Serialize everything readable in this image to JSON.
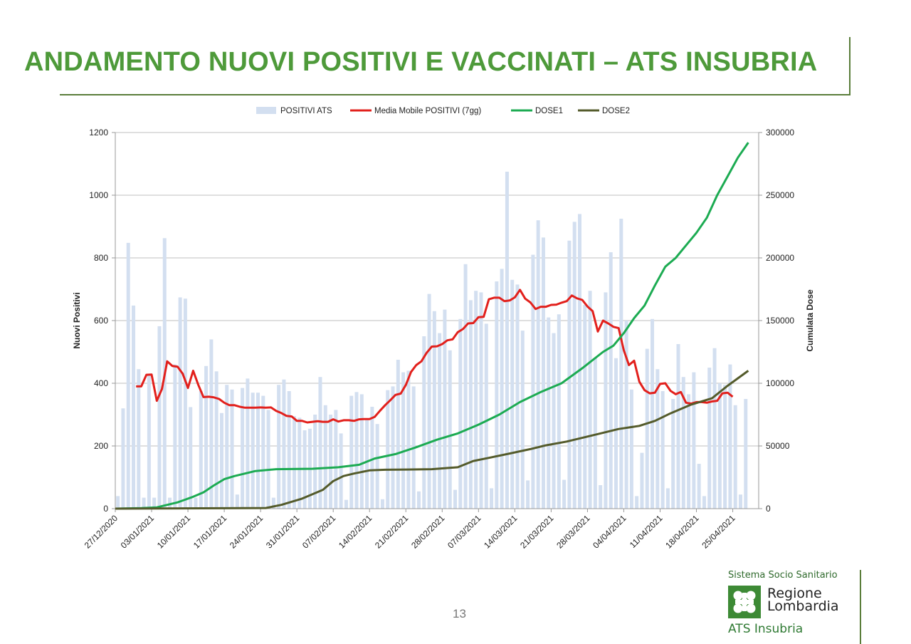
{
  "page": {
    "title": "ANDAMENTO NUOVI POSITIVI E VACCINATI – ATS INSUBRIA",
    "page_number": "13"
  },
  "branding": {
    "system": "Sistema Socio Sanitario",
    "region_line1": "Regione",
    "region_line2": "Lombardia",
    "ats": "ATS Insubria",
    "logo_icon": "regione-lombardia-logo-icon"
  },
  "chart_data": {
    "type": "bar+line",
    "title": "",
    "ylabel": "Nuovi Positivi",
    "y2label": "Cumulata Dose",
    "ylim": [
      0,
      1200
    ],
    "y2lim": [
      0,
      300000
    ],
    "yticks": [
      "0",
      "200",
      "400",
      "600",
      "800",
      "1000",
      "1200"
    ],
    "y2ticks": [
      "0",
      "50000",
      "100000",
      "150000",
      "200000",
      "250000",
      "300000"
    ],
    "xlim": [
      "2020-12-27",
      "2021-04-30"
    ],
    "xticks": [
      "27/12/2020",
      "03/01/2021",
      "10/01/2021",
      "17/01/2021",
      "24/01/2021",
      "31/01/2021",
      "07/02/2021",
      "14/02/2021",
      "21/02/2021",
      "28/02/2021",
      "07/03/2021",
      "14/03/2021",
      "21/03/2021",
      "28/03/2021",
      "04/04/2021",
      "11/04/2021",
      "18/04/2021",
      "25/04/2021"
    ],
    "grid": true,
    "legend_position": "top",
    "colors": {
      "bars": "#d3dff0",
      "moving_average": "#e2201c",
      "dose1": "#1cab52",
      "dose2": "#545b2b",
      "grid": "#bfbfbf",
      "text": "#222222"
    },
    "series": [
      {
        "name": "POSITIVI ATS",
        "type": "bar",
        "x_start": "2020-12-27",
        "values": [
          40,
          320,
          848,
          648,
          445,
          35,
          430,
          35,
          582,
          863,
          35,
          460,
          674,
          670,
          324,
          35,
          375,
          455,
          540,
          438,
          305,
          395,
          380,
          45,
          385,
          415,
          370,
          370,
          360,
          315,
          35,
          395,
          412,
          375,
          295,
          290,
          250,
          255,
          300,
          420,
          330,
          300,
          315,
          240,
          28,
          360,
          372,
          365,
          285,
          325,
          270,
          30,
          378,
          390,
          475,
          435,
          440,
          390,
          55,
          550,
          685,
          630,
          560,
          635,
          505,
          60,
          605,
          780,
          665,
          695,
          690,
          590,
          65,
          725,
          765,
          1075,
          730,
          715,
          568,
          90,
          810,
          920,
          865,
          610,
          560,
          620,
          92,
          855,
          915,
          940,
          650,
          695,
          480,
          75,
          690,
          818,
          480,
          925,
          600,
          380,
          40,
          178,
          510,
          605,
          445,
          375,
          65,
          350,
          525,
          420,
          365,
          435,
          143,
          40,
          450,
          512,
          400,
          395,
          460,
          330,
          45,
          350
        ]
      },
      {
        "name": "Media Mobile POSITIVI (7gg)",
        "type": "line",
        "axis": "left",
        "points": [
          [
            "2020-12-31",
            390
          ],
          [
            "2021-01-01",
            390
          ],
          [
            "2021-01-02",
            427
          ],
          [
            "2021-01-03",
            428
          ],
          [
            "2021-01-04",
            344
          ],
          [
            "2021-01-05",
            382
          ],
          [
            "2021-01-06",
            470
          ],
          [
            "2021-01-07",
            455
          ],
          [
            "2021-01-08",
            453
          ],
          [
            "2021-01-09",
            430
          ],
          [
            "2021-01-10",
            385
          ],
          [
            "2021-01-11",
            440
          ],
          [
            "2021-01-12",
            395
          ],
          [
            "2021-01-13",
            356
          ],
          [
            "2021-01-14",
            357
          ],
          [
            "2021-01-15",
            355
          ],
          [
            "2021-01-16",
            350
          ],
          [
            "2021-01-17",
            338
          ],
          [
            "2021-01-18",
            330
          ],
          [
            "2021-01-19",
            330
          ],
          [
            "2021-01-20",
            325
          ],
          [
            "2021-01-21",
            322
          ],
          [
            "2021-01-22",
            322
          ],
          [
            "2021-01-23",
            322
          ],
          [
            "2021-01-24",
            323
          ],
          [
            "2021-01-25",
            322
          ],
          [
            "2021-01-26",
            323
          ],
          [
            "2021-01-27",
            312
          ],
          [
            "2021-01-28",
            305
          ],
          [
            "2021-01-29",
            296
          ],
          [
            "2021-01-30",
            294
          ],
          [
            "2021-01-31",
            280
          ],
          [
            "2021-02-01",
            280
          ],
          [
            "2021-02-02",
            275
          ],
          [
            "2021-02-03",
            277
          ],
          [
            "2021-02-04",
            279
          ],
          [
            "2021-02-05",
            277
          ],
          [
            "2021-02-06",
            277
          ],
          [
            "2021-02-07",
            285
          ],
          [
            "2021-02-08",
            278
          ],
          [
            "2021-02-09",
            282
          ],
          [
            "2021-02-10",
            282
          ],
          [
            "2021-02-11",
            280
          ],
          [
            "2021-02-12",
            285
          ],
          [
            "2021-02-13",
            286
          ],
          [
            "2021-02-14",
            286
          ],
          [
            "2021-02-15",
            293
          ],
          [
            "2021-02-16",
            312
          ],
          [
            "2021-02-17",
            330
          ],
          [
            "2021-02-18",
            346
          ],
          [
            "2021-02-19",
            363
          ],
          [
            "2021-02-20",
            367
          ],
          [
            "2021-02-21",
            395
          ],
          [
            "2021-02-22",
            436
          ],
          [
            "2021-02-23",
            458
          ],
          [
            "2021-02-24",
            470
          ],
          [
            "2021-02-25",
            497
          ],
          [
            "2021-02-26",
            517
          ],
          [
            "2021-02-27",
            518
          ],
          [
            "2021-02-28",
            525
          ],
          [
            "2021-03-01",
            537
          ],
          [
            "2021-03-02",
            540
          ],
          [
            "2021-03-03",
            563
          ],
          [
            "2021-03-04",
            573
          ],
          [
            "2021-03-05",
            591
          ],
          [
            "2021-03-06",
            592
          ],
          [
            "2021-03-07",
            611
          ],
          [
            "2021-03-08",
            612
          ],
          [
            "2021-03-09",
            668
          ],
          [
            "2021-03-10",
            673
          ],
          [
            "2021-03-11",
            673
          ],
          [
            "2021-03-12",
            662
          ],
          [
            "2021-03-13",
            664
          ],
          [
            "2021-03-14",
            674
          ],
          [
            "2021-03-15",
            698
          ],
          [
            "2021-03-16",
            670
          ],
          [
            "2021-03-17",
            658
          ],
          [
            "2021-03-18",
            637
          ],
          [
            "2021-03-19",
            644
          ],
          [
            "2021-03-20",
            644
          ],
          [
            "2021-03-21",
            650
          ],
          [
            "2021-03-22",
            651
          ],
          [
            "2021-03-23",
            657
          ],
          [
            "2021-03-24",
            662
          ],
          [
            "2021-03-25",
            680
          ],
          [
            "2021-03-26",
            671
          ],
          [
            "2021-03-27",
            666
          ],
          [
            "2021-03-28",
            645
          ],
          [
            "2021-03-29",
            630
          ],
          [
            "2021-03-30",
            565
          ],
          [
            "2021-03-31",
            600
          ],
          [
            "2021-04-01",
            591
          ],
          [
            "2021-04-02",
            580
          ],
          [
            "2021-04-03",
            576
          ],
          [
            "2021-04-04",
            505
          ],
          [
            "2021-04-05",
            458
          ],
          [
            "2021-04-06",
            472
          ],
          [
            "2021-04-07",
            405
          ],
          [
            "2021-04-08",
            378
          ],
          [
            "2021-04-09",
            368
          ],
          [
            "2021-04-10",
            370
          ],
          [
            "2021-04-11",
            398
          ],
          [
            "2021-04-12",
            400
          ],
          [
            "2021-04-13",
            376
          ],
          [
            "2021-04-14",
            365
          ],
          [
            "2021-04-15",
            372
          ],
          [
            "2021-04-16",
            338
          ],
          [
            "2021-04-17",
            335
          ],
          [
            "2021-04-18",
            340
          ],
          [
            "2021-04-19",
            340
          ],
          [
            "2021-04-20",
            338
          ],
          [
            "2021-04-21",
            342
          ],
          [
            "2021-04-22",
            344
          ],
          [
            "2021-04-23",
            368
          ],
          [
            "2021-04-24",
            370
          ],
          [
            "2021-04-25",
            357
          ]
        ]
      },
      {
        "name": "DOSE1",
        "type": "line",
        "axis": "right",
        "points": [
          [
            "2020-12-27",
            0
          ],
          [
            "2021-01-01",
            400
          ],
          [
            "2021-01-04",
            1000
          ],
          [
            "2021-01-06",
            3000
          ],
          [
            "2021-01-08",
            5000
          ],
          [
            "2021-01-11",
            9500
          ],
          [
            "2021-01-13",
            13000
          ],
          [
            "2021-01-15",
            18500
          ],
          [
            "2021-01-17",
            23500
          ],
          [
            "2021-01-19",
            26000
          ],
          [
            "2021-01-23",
            30000
          ],
          [
            "2021-01-27",
            31500
          ],
          [
            "2021-02-03",
            31800
          ],
          [
            "2021-02-08",
            33000
          ],
          [
            "2021-02-12",
            35000
          ],
          [
            "2021-02-15",
            40000
          ],
          [
            "2021-02-19",
            43500
          ],
          [
            "2021-02-23",
            49000
          ],
          [
            "2021-02-27",
            55000
          ],
          [
            "2021-03-03",
            60000
          ],
          [
            "2021-03-07",
            67000
          ],
          [
            "2021-03-11",
            75000
          ],
          [
            "2021-03-15",
            85000
          ],
          [
            "2021-03-19",
            93000
          ],
          [
            "2021-03-23",
            100000
          ],
          [
            "2021-03-27",
            112000
          ],
          [
            "2021-03-31",
            125000
          ],
          [
            "2021-04-02",
            130000
          ],
          [
            "2021-04-04",
            140000
          ],
          [
            "2021-04-06",
            152000
          ],
          [
            "2021-04-08",
            162000
          ],
          [
            "2021-04-10",
            178000
          ],
          [
            "2021-04-12",
            193000
          ],
          [
            "2021-04-14",
            200000
          ],
          [
            "2021-04-16",
            210000
          ],
          [
            "2021-04-18",
            220000
          ],
          [
            "2021-04-20",
            232000
          ],
          [
            "2021-04-22",
            250000
          ],
          [
            "2021-04-24",
            265000
          ],
          [
            "2021-04-26",
            280000
          ],
          [
            "2021-04-28",
            292000
          ]
        ]
      },
      {
        "name": "DOSE2",
        "type": "line",
        "axis": "right",
        "points": [
          [
            "2020-12-27",
            0
          ],
          [
            "2021-01-25",
            500
          ],
          [
            "2021-01-28",
            3000
          ],
          [
            "2021-02-01",
            8000
          ],
          [
            "2021-02-05",
            15000
          ],
          [
            "2021-02-07",
            22000
          ],
          [
            "2021-02-09",
            26000
          ],
          [
            "2021-02-11",
            28000
          ],
          [
            "2021-02-14",
            30500
          ],
          [
            "2021-02-17",
            31000
          ],
          [
            "2021-02-21",
            31200
          ],
          [
            "2021-02-26",
            31500
          ],
          [
            "2021-03-03",
            33000
          ],
          [
            "2021-03-06",
            38000
          ],
          [
            "2021-03-09",
            40500
          ],
          [
            "2021-03-13",
            44000
          ],
          [
            "2021-03-17",
            47500
          ],
          [
            "2021-03-20",
            50500
          ],
          [
            "2021-03-24",
            53500
          ],
          [
            "2021-03-27",
            56500
          ],
          [
            "2021-03-30",
            59500
          ],
          [
            "2021-04-03",
            63500
          ],
          [
            "2021-04-07",
            66000
          ],
          [
            "2021-04-10",
            70000
          ],
          [
            "2021-04-13",
            76000
          ],
          [
            "2021-04-17",
            83000
          ],
          [
            "2021-04-21",
            88000
          ],
          [
            "2021-04-24",
            98000
          ],
          [
            "2021-04-26",
            104000
          ],
          [
            "2021-04-28",
            110000
          ]
        ]
      }
    ]
  }
}
